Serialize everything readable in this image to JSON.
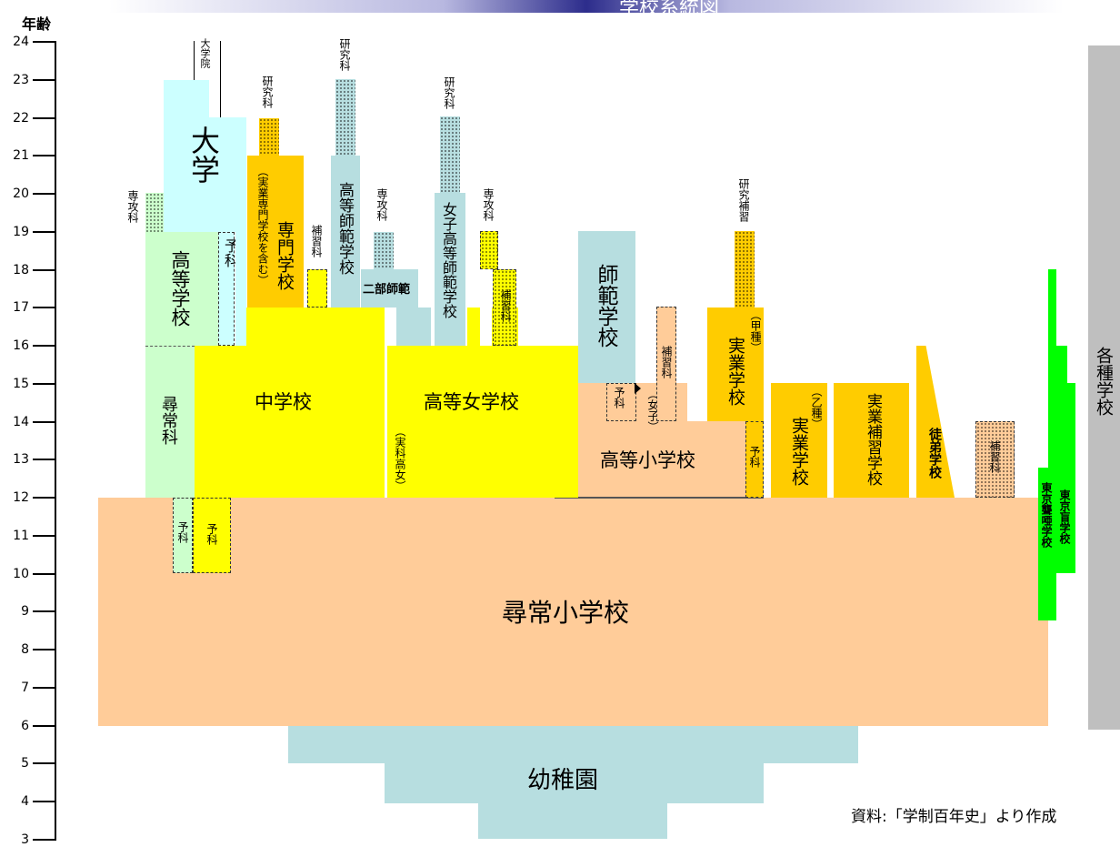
{
  "title": "学校系統図",
  "axis": {
    "title": "年齢",
    "ticks": [
      24,
      23,
      22,
      21,
      20,
      19,
      18,
      17,
      16,
      15,
      14,
      13,
      12,
      11,
      10,
      9,
      8,
      7,
      6,
      5,
      4,
      3
    ]
  },
  "source_note": "資料:「学制百年史」より作成",
  "colors": {
    "kindergarten": "#b7dee0",
    "elementary": "#ffcc99",
    "middle": "#ffff00",
    "higher": "#ccffff",
    "highschool": "#ccffcc",
    "vocational": "#ffcc00",
    "normal": "#b7dee0",
    "special": "#00ff00",
    "misc": "#bfbfbf"
  },
  "labels": {
    "kindergarten": "幼稚園",
    "elementary": "尋常小学校",
    "higher_elementary": "高等小学校",
    "middle_school": "中学校",
    "girls_high_school": "高等女学校",
    "jissai_girls": "（実科高女）",
    "university": "大学",
    "graduate_school": "大学院",
    "high_school": "高等学校",
    "jinjo_ka": "尋常科",
    "preparatory": "予科",
    "specialized_school": "専門学校",
    "specialized_includes": "（実業専門学校を含む）",
    "research": "研究科",
    "research_supplementary": "研究補習",
    "major": "専攻科",
    "supplementary": "補習科",
    "higher_normal": "高等師範学校",
    "womens_higher_normal": "女子高等師範学校",
    "second_normal": "二部師範",
    "normal_school": "師範学校",
    "vocational_a": "実業学校",
    "type_a": "（甲種）",
    "vocational_b": "実業学校",
    "type_b": "（乙種）",
    "vocational_supplementary": "実業補習学校",
    "apprentice": "徒弟学校",
    "girls": "（女子）",
    "deaf_school": "東京聾唖学校",
    "blind_school": "東京盲学校",
    "misc_schools": "各種学校"
  }
}
